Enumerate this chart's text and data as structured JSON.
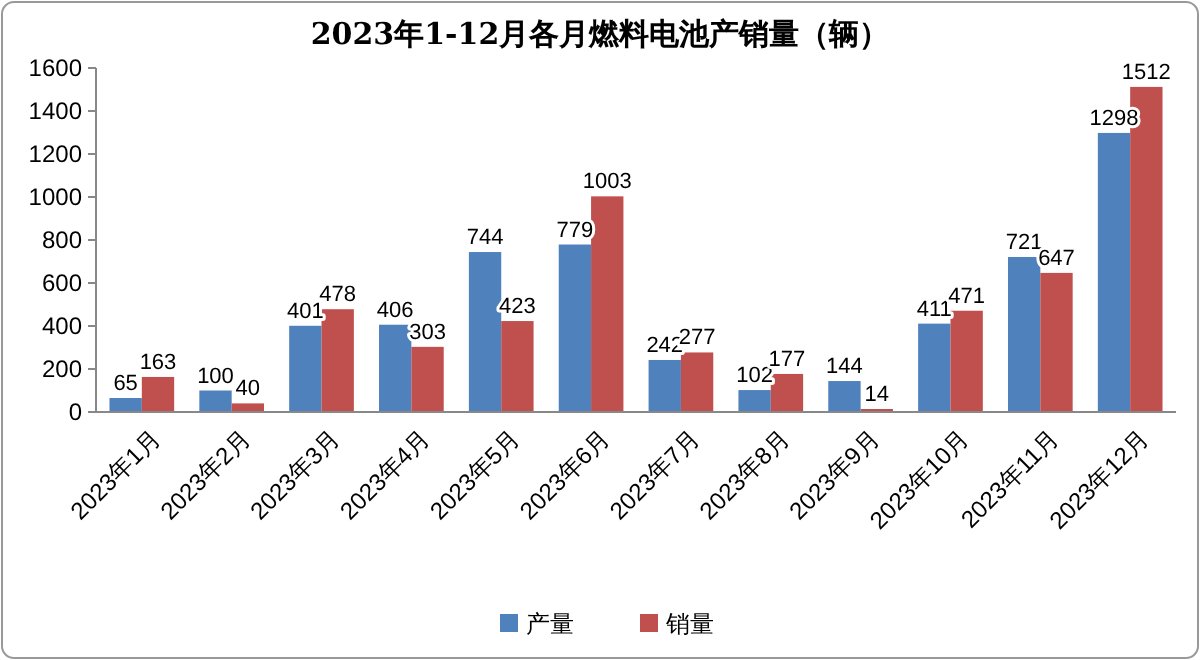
{
  "chart_data": {
    "type": "bar",
    "title": "2023年1-12月各月燃料电池产销量（辆）",
    "categories": [
      "2023年1月",
      "2023年2月",
      "2023年3月",
      "2023年4月",
      "2023年5月",
      "2023年6月",
      "2023年7月",
      "2023年8月",
      "2023年9月",
      "2023年10月",
      "2023年11月",
      "2023年12月"
    ],
    "series": [
      {
        "name": "产量",
        "color": "#4f81bd",
        "values": [
          65,
          100,
          401,
          406,
          744,
          779,
          242,
          102,
          144,
          411,
          721,
          1298
        ]
      },
      {
        "name": "销量",
        "color": "#c0504d",
        "values": [
          163,
          40,
          478,
          303,
          423,
          1003,
          277,
          177,
          14,
          471,
          647,
          1512
        ]
      }
    ],
    "ylim": [
      0,
      1600
    ],
    "yticks": [
      0,
      200,
      400,
      600,
      800,
      1000,
      1200,
      1400,
      1600
    ],
    "grid": false,
    "legend": "bottom",
    "data_labels": true
  }
}
